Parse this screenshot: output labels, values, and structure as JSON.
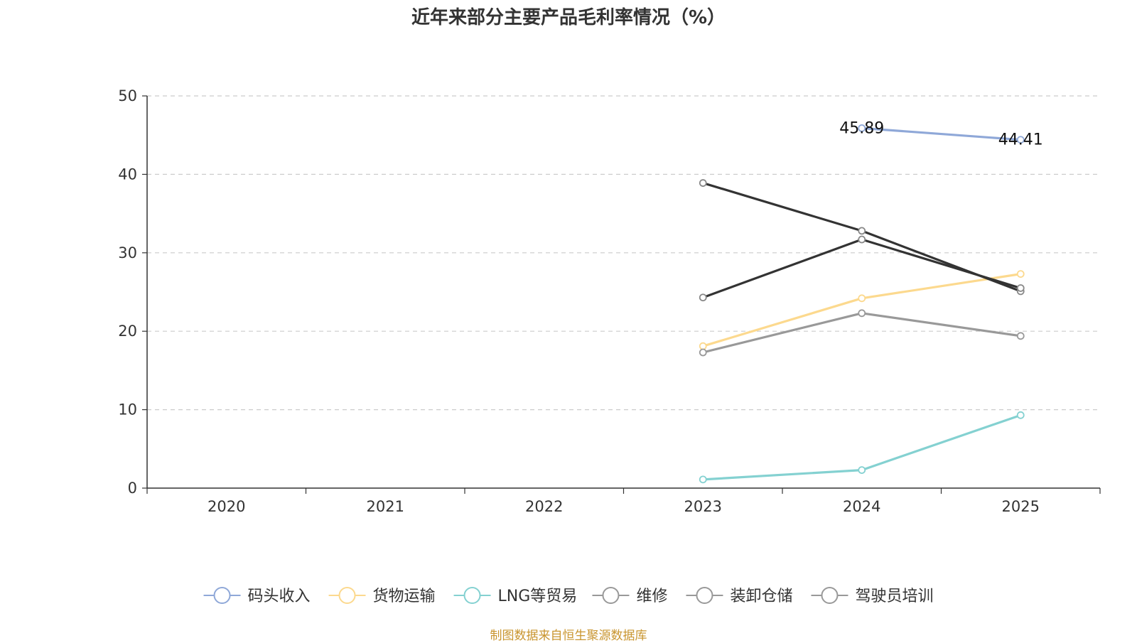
{
  "chart_data": {
    "type": "line",
    "title": "近年来部分主要产品毛利率情况（%）",
    "xlabel": "",
    "ylabel": "",
    "categories": [
      "2020",
      "2021",
      "2022",
      "2023",
      "2024",
      "2025"
    ],
    "ylim": [
      0,
      50
    ],
    "yticks": [
      0,
      10,
      20,
      30,
      40,
      50
    ],
    "grid": true,
    "legend_position": "bottom",
    "series": [
      {
        "name": "码头收入",
        "color": "#8fa8d8",
        "values": [
          null,
          null,
          null,
          null,
          45.89,
          44.41
        ],
        "labels": [
          null,
          null,
          null,
          null,
          "45.89",
          "44.41"
        ]
      },
      {
        "name": "货物运输",
        "color": "#fcd98e",
        "values": [
          null,
          null,
          null,
          18.1,
          24.2,
          27.3
        ],
        "labels": [
          null,
          null,
          null,
          null,
          null,
          null
        ]
      },
      {
        "name": "LNG等贸易",
        "color": "#84d1d1",
        "values": [
          null,
          null,
          null,
          1.1,
          2.3,
          9.3
        ],
        "labels": [
          null,
          null,
          null,
          null,
          null,
          null
        ]
      },
      {
        "name": "维修",
        "color": "#333333",
        "values": [
          null,
          null,
          null,
          38.9,
          32.8,
          25.1
        ],
        "labels": [
          null,
          null,
          null,
          null,
          null,
          null
        ]
      },
      {
        "name": "装卸仓储",
        "color": "#999999",
        "values": [
          null,
          null,
          null,
          17.3,
          22.3,
          19.4
        ],
        "labels": [
          null,
          null,
          null,
          null,
          null,
          null
        ]
      },
      {
        "name": "驾驶员培训",
        "color": "#333333",
        "values": [
          null,
          null,
          null,
          24.3,
          31.7,
          25.5
        ],
        "labels": [
          null,
          null,
          null,
          null,
          null,
          null
        ]
      }
    ],
    "legend_marker_color": "#999999"
  },
  "source_text": "制图数据来自恒生聚源数据库"
}
